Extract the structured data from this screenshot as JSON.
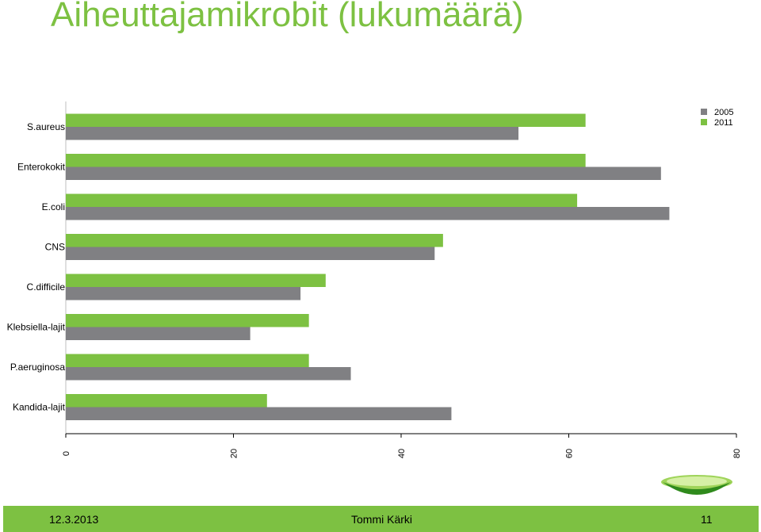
{
  "slide": {
    "title": "Aiheuttajamikrobit (lukumäärä)",
    "footer": {
      "date": "12.3.2013",
      "author": "Tommi Kärki",
      "page": "11"
    }
  },
  "chart_data": {
    "type": "bar",
    "orientation": "horizontal",
    "categories": [
      "S.aureus",
      "Enterokokit",
      "E.coli",
      "CNS",
      "C.difficile",
      "Klebsiella-lajit",
      "P.aeruginosa",
      "Kandida-lajit"
    ],
    "series": [
      {
        "name": "2011",
        "color": "#7dc142",
        "values": [
          62,
          62,
          61,
          45,
          31,
          29,
          29,
          24
        ]
      },
      {
        "name": "2005",
        "color": "#808083",
        "values": [
          54,
          71,
          72,
          44,
          28,
          22,
          34,
          46
        ]
      }
    ],
    "xlim": [
      0,
      80
    ],
    "xticks": [
      "0",
      "20",
      "40",
      "60",
      "80"
    ],
    "xlabel": "",
    "ylabel": "",
    "grid": false,
    "legend": {
      "position": "top-right",
      "entries": [
        "2005",
        "2011"
      ]
    }
  }
}
